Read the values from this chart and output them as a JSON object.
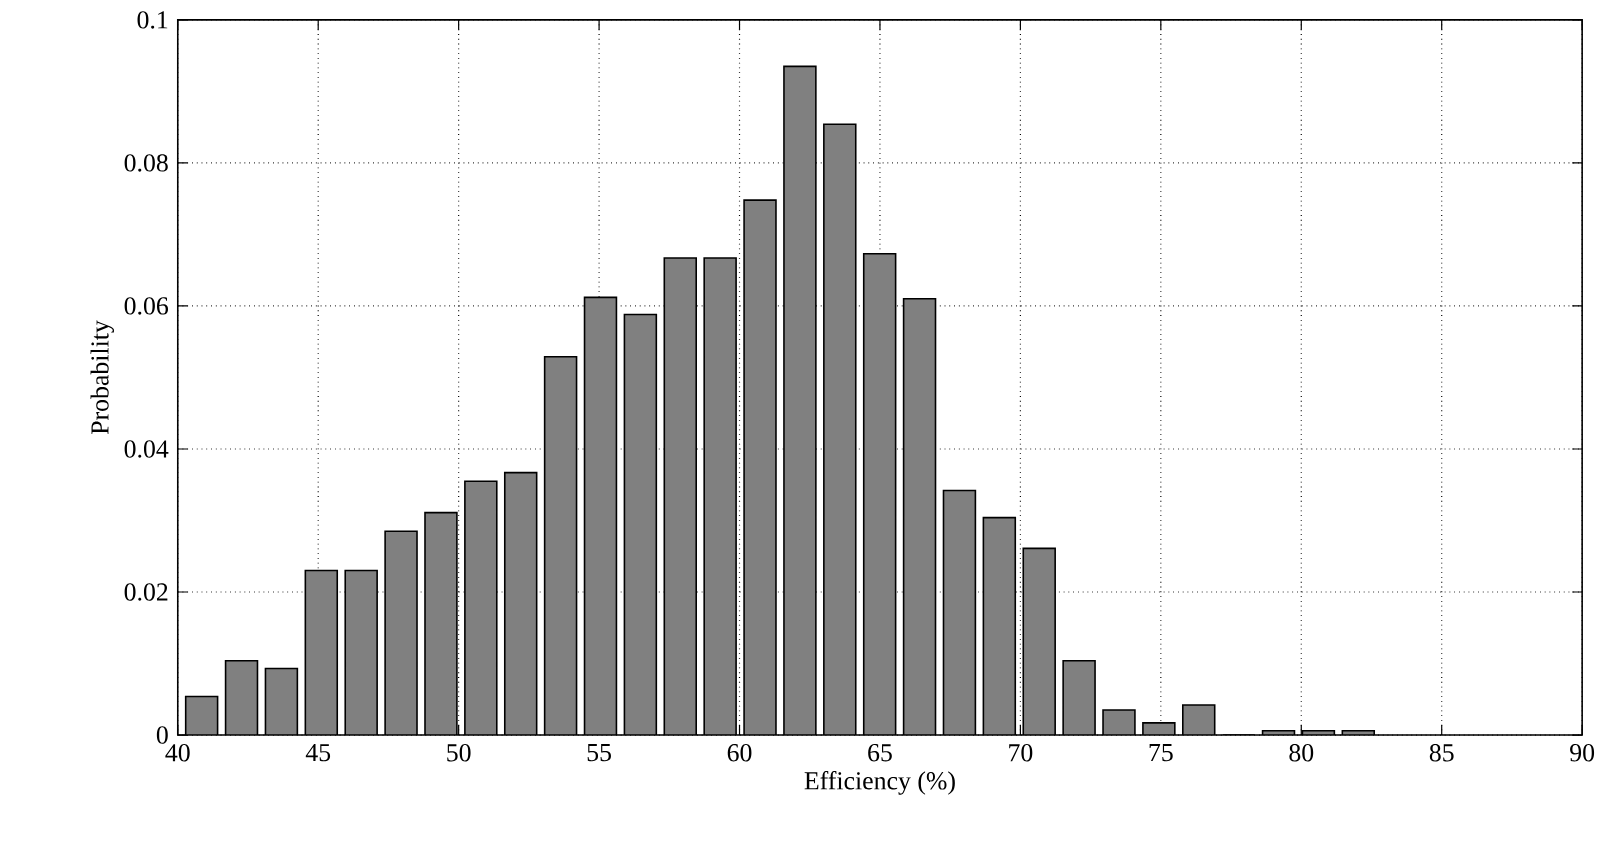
{
  "chart_data": {
    "type": "bar",
    "xlabel": "Efficiency (%)",
    "ylabel": "Probability",
    "x": [
      40.85,
      42.27,
      43.69,
      45.11,
      46.53,
      47.95,
      49.37,
      50.79,
      52.21,
      53.63,
      55.05,
      56.47,
      57.89,
      59.31,
      60.73,
      62.15,
      63.57,
      64.99,
      66.41,
      67.83,
      69.25,
      70.67,
      72.09,
      73.51,
      74.93,
      76.35,
      77.77,
      79.19,
      80.61,
      82.03
    ],
    "values": [
      0.0054,
      0.0104,
      0.0093,
      0.023,
      0.023,
      0.0285,
      0.0311,
      0.0355,
      0.0367,
      0.0529,
      0.0612,
      0.0588,
      0.0667,
      0.0667,
      0.0748,
      0.0935,
      0.0854,
      0.0673,
      0.061,
      0.0342,
      0.0304,
      0.0261,
      0.0104,
      0.0035,
      0.0017,
      0.0042,
      0,
      0.0006,
      0.0006,
      0.0006
    ],
    "color": "#808080",
    "xlim": [
      40,
      90
    ],
    "ylim": [
      0,
      0.1
    ],
    "xticks": [
      40,
      45,
      50,
      55,
      60,
      65,
      70,
      75,
      80,
      85,
      90
    ],
    "yticks": [
      0,
      0.02,
      0.04,
      0.06,
      0.08,
      0.1
    ],
    "grid": true
  }
}
